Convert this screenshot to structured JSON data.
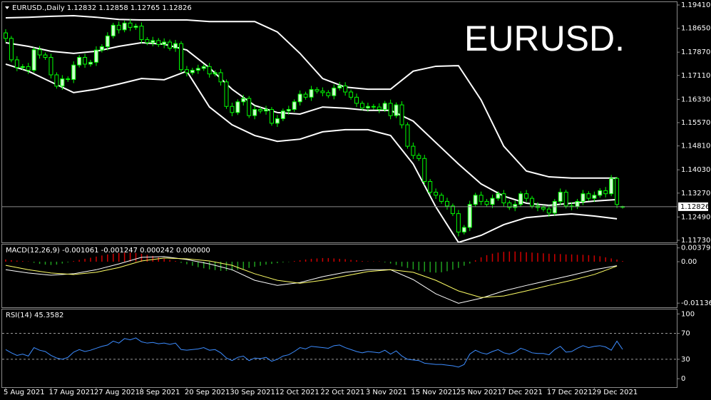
{
  "chart_data": [
    {
      "type": "candlestick",
      "title": "EURUSD.,Daily  1.12832 1.12858 1.12765 1.12826",
      "watermark": "EURUSD.",
      "categories": [
        "5 Aug 2021",
        null,
        null,
        null,
        null,
        null,
        null,
        null,
        "17 Aug 2021",
        null,
        null,
        null,
        null,
        null,
        null,
        null,
        "27 Aug 2021",
        null,
        null,
        null,
        null,
        null,
        null,
        null,
        "8 Sep 2021",
        null,
        null,
        null,
        null,
        null,
        null,
        null,
        "20 Sep 2021",
        null,
        null,
        null,
        null,
        null,
        null,
        null,
        "30 Sep 2021",
        null,
        null,
        null,
        null,
        null,
        null,
        null,
        "12 Oct 2021",
        null,
        null,
        null,
        null,
        null,
        null,
        null,
        "22 Oct 2021",
        null,
        null,
        null,
        null,
        null,
        null,
        null,
        "3 Nov 2021",
        null,
        null,
        null,
        null,
        null,
        null,
        null,
        "15 Nov 2021",
        null,
        null,
        null,
        null,
        null,
        null,
        null,
        "25 Nov 2021",
        null,
        null,
        null,
        null,
        null,
        null,
        null,
        "7 Dec 2021",
        null,
        null,
        null,
        null,
        null,
        null,
        null,
        "17 Dec 2021",
        null,
        null,
        null,
        null,
        null,
        null,
        null,
        "29 Dec 2021",
        null,
        null,
        null,
        null,
        null
      ],
      "open": [
        1.185,
        1.1832,
        1.1762,
        1.1737,
        1.174,
        1.1728,
        1.1795,
        1.1778,
        1.177,
        1.1713,
        1.1676,
        1.17,
        1.1698,
        1.1745,
        1.177,
        1.1748,
        1.1754,
        1.1794,
        1.1805,
        1.184,
        1.1875,
        1.186,
        1.1882,
        1.1868,
        1.1872,
        1.1828,
        1.1818,
        1.1825,
        1.1812,
        1.182,
        1.18,
        1.1815,
        1.173,
        1.172,
        1.1728,
        1.1734,
        1.174,
        1.1716,
        1.172,
        1.169,
        1.161,
        1.159,
        1.1625,
        1.1636,
        1.158,
        1.16,
        1.1595,
        1.16,
        1.1555,
        1.157,
        1.1595,
        1.16,
        1.1625,
        1.165,
        1.164,
        1.1665,
        1.166,
        1.1655,
        1.1645,
        1.167,
        1.1677,
        1.1657,
        1.164,
        1.162,
        1.1605,
        1.161,
        1.1608,
        1.16,
        1.162,
        1.158,
        1.1615,
        1.155,
        1.148,
        1.145,
        1.144,
        1.1365,
        1.133,
        1.132,
        1.13,
        1.1285,
        1.126,
        1.12,
        1.1215,
        1.129,
        1.132,
        1.13,
        1.129,
        1.131,
        1.1325,
        1.1295,
        1.128,
        1.129,
        1.1325,
        1.131,
        1.1285,
        1.128,
        1.1275,
        1.1262,
        1.13,
        1.133,
        1.1285,
        1.1283,
        1.13,
        1.1325,
        1.131,
        1.132,
        1.1335,
        1.1325,
        1.1375,
        1.12832
      ],
      "high": [
        1.1862,
        1.184,
        1.1774,
        1.1748,
        1.1752,
        1.1803,
        1.1807,
        1.1786,
        1.1782,
        1.1721,
        1.1712,
        1.1708,
        1.1757,
        1.1778,
        1.1782,
        1.1762,
        1.1806,
        1.1813,
        1.1852,
        1.1883,
        1.1887,
        1.189,
        1.1894,
        1.188,
        1.1884,
        1.1836,
        1.1837,
        1.1833,
        1.1832,
        1.1828,
        1.1827,
        1.1823,
        1.1742,
        1.1736,
        1.1746,
        1.1748,
        1.1752,
        1.1728,
        1.1732,
        1.1698,
        1.1622,
        1.1633,
        1.1648,
        1.1644,
        1.1612,
        1.1608,
        1.1612,
        1.1608,
        1.1582,
        1.1603,
        1.1612,
        1.1633,
        1.1662,
        1.1658,
        1.1677,
        1.1673,
        1.1672,
        1.1663,
        1.1682,
        1.169,
        1.1689,
        1.1665,
        1.1652,
        1.1628,
        1.1622,
        1.1618,
        1.162,
        1.1628,
        1.1632,
        1.1623,
        1.1627,
        1.1558,
        1.1492,
        1.1458,
        1.1452,
        1.1373,
        1.1342,
        1.1328,
        1.1312,
        1.1293,
        1.1272,
        1.1223,
        1.1302,
        1.1328,
        1.1332,
        1.1308,
        1.1322,
        1.1333,
        1.1337,
        1.1303,
        1.1302,
        1.1333,
        1.1337,
        1.1318,
        1.1297,
        1.1288,
        1.1287,
        1.1308,
        1.1342,
        1.1338,
        1.1297,
        1.1308,
        1.1337,
        1.1333,
        1.1332,
        1.1343,
        1.1347,
        1.1386,
        1.138,
        1.12858
      ],
      "low": [
        1.182,
        1.1754,
        1.1725,
        1.1729,
        1.1716,
        1.172,
        1.1766,
        1.1762,
        1.1701,
        1.1668,
        1.1664,
        1.169,
        1.1686,
        1.1737,
        1.1736,
        1.174,
        1.1742,
        1.1786,
        1.1793,
        1.1832,
        1.1848,
        1.1852,
        1.1856,
        1.186,
        1.1816,
        1.181,
        1.1806,
        1.1804,
        1.18,
        1.1792,
        1.1788,
        1.1722,
        1.1708,
        1.1712,
        1.1716,
        1.1726,
        1.1704,
        1.1708,
        1.1678,
        1.1602,
        1.1578,
        1.1582,
        1.1613,
        1.1572,
        1.1568,
        1.1587,
        1.1583,
        1.1547,
        1.1543,
        1.1562,
        1.1583,
        1.1592,
        1.1613,
        1.1632,
        1.1628,
        1.1652,
        1.1643,
        1.1637,
        1.1633,
        1.1662,
        1.1645,
        1.1632,
        1.1608,
        1.1597,
        1.1593,
        1.16,
        1.1588,
        1.1592,
        1.1568,
        1.1572,
        1.1538,
        1.1472,
        1.1438,
        1.1432,
        1.1353,
        1.1322,
        1.1308,
        1.1292,
        1.1273,
        1.1252,
        1.1186,
        1.1192,
        1.1203,
        1.1282,
        1.1288,
        1.1282,
        1.1278,
        1.1302,
        1.1283,
        1.1272,
        1.1268,
        1.1282,
        1.1298,
        1.1277,
        1.1268,
        1.1267,
        1.125,
        1.1254,
        1.1288,
        1.1277,
        1.1271,
        1.1275,
        1.1288,
        1.1302,
        1.1298,
        1.1312,
        1.1313,
        1.1317,
        1.1278,
        1.12765
      ],
      "close": [
        1.1832,
        1.1762,
        1.1737,
        1.174,
        1.1728,
        1.1795,
        1.1778,
        1.177,
        1.1713,
        1.1676,
        1.17,
        1.1698,
        1.1745,
        1.177,
        1.1748,
        1.1754,
        1.1794,
        1.1805,
        1.184,
        1.1875,
        1.186,
        1.1882,
        1.1868,
        1.1872,
        1.1828,
        1.1818,
        1.1825,
        1.1812,
        1.182,
        1.18,
        1.1815,
        1.173,
        1.172,
        1.1728,
        1.1734,
        1.174,
        1.1716,
        1.172,
        1.169,
        1.161,
        1.159,
        1.1625,
        1.1636,
        1.158,
        1.16,
        1.1595,
        1.16,
        1.1555,
        1.157,
        1.1595,
        1.16,
        1.1625,
        1.165,
        1.164,
        1.1665,
        1.166,
        1.1655,
        1.1645,
        1.167,
        1.1677,
        1.1657,
        1.164,
        1.162,
        1.1605,
        1.161,
        1.1608,
        1.16,
        1.162,
        1.158,
        1.1615,
        1.155,
        1.148,
        1.145,
        1.144,
        1.1365,
        1.133,
        1.132,
        1.13,
        1.1285,
        1.126,
        1.12,
        1.1215,
        1.129,
        1.132,
        1.13,
        1.129,
        1.131,
        1.1325,
        1.1295,
        1.128,
        1.129,
        1.1325,
        1.131,
        1.1285,
        1.128,
        1.1275,
        1.1262,
        1.13,
        1.133,
        1.1285,
        1.1283,
        1.13,
        1.1325,
        1.131,
        1.132,
        1.1335,
        1.1325,
        1.1375,
        1.129,
        1.12826
      ],
      "bull_color": "#ccffcc",
      "bear_color": "#000000",
      "wick_color": "#00ff00",
      "bands": {
        "color": "#ffffff",
        "x": [
          0,
          4,
          8,
          12,
          16,
          20,
          24,
          28,
          32,
          36,
          40,
          44,
          48,
          52,
          56,
          60,
          64,
          68,
          72,
          76,
          80,
          84,
          88,
          92,
          96,
          100,
          104,
          108
        ],
        "upper": [
          1.1899,
          1.1901,
          1.1904,
          1.1906,
          1.1901,
          1.1894,
          1.1892,
          1.1892,
          1.1892,
          1.1887,
          1.1887,
          1.1887,
          1.1853,
          1.1783,
          1.1701,
          1.1673,
          1.1666,
          1.1666,
          1.1725,
          1.1741,
          1.1743,
          1.1631,
          1.148,
          1.1399,
          1.138,
          1.1376,
          1.1376,
          1.1376
        ],
        "middle": [
          1.1818,
          1.1806,
          1.179,
          1.1783,
          1.179,
          1.1806,
          1.1818,
          1.1813,
          1.1794,
          1.1736,
          1.1666,
          1.1613,
          1.159,
          1.1585,
          1.1608,
          1.1604,
          1.1597,
          1.1597,
          1.1562,
          1.1492,
          1.1422,
          1.1357,
          1.1317,
          1.1294,
          1.1287,
          1.1294,
          1.1301,
          1.1306
        ],
        "lower": [
          1.1748,
          1.1725,
          1.169,
          1.1655,
          1.1666,
          1.1683,
          1.1701,
          1.1697,
          1.1725,
          1.1608,
          1.155,
          1.1515,
          1.1496,
          1.1503,
          1.1527,
          1.1534,
          1.1534,
          1.1515,
          1.1422,
          1.1282,
          1.1166,
          1.1189,
          1.1224,
          1.1247,
          1.1254,
          1.1259,
          1.1252,
          1.1243
        ]
      },
      "last_price": 1.12826,
      "ylim": [
        1.1173,
        1.1941
      ],
      "yticks": [
        {
          "value": 1.1941,
          "label": "1.19410"
        },
        {
          "value": 1.1865,
          "label": "1.18650"
        },
        {
          "value": 1.1787,
          "label": "1.17870"
        },
        {
          "value": 1.1711,
          "label": "1.17110"
        },
        {
          "value": 1.1633,
          "label": "1.16330"
        },
        {
          "value": 1.1557,
          "label": "1.15570"
        },
        {
          "value": 1.1481,
          "label": "1.14810"
        },
        {
          "value": 1.1403,
          "label": "1.14030"
        },
        {
          "value": 1.1327,
          "label": "1.13270"
        },
        {
          "value": 1.1249,
          "label": "1.12490"
        },
        {
          "value": 1.1173,
          "label": "1.11730"
        }
      ]
    },
    {
      "type": "macd",
      "title": "MACD(12,26,9) -0.001061 -0.001247 0.000242 0.000000",
      "histogram": [
        0.0006,
        0.0004,
        0.0003,
        0.0002,
        0.0001,
        -0.0003,
        -0.0006,
        -0.0008,
        -0.0009,
        -0.0008,
        -0.0005,
        -0.0002,
        0.0002,
        0.0005,
        0.0008,
        0.0011,
        0.0014,
        0.0017,
        0.002,
        0.0022,
        0.0024,
        0.0025,
        0.0025,
        0.0024,
        0.0022,
        0.0019,
        0.0016,
        0.0012,
        0.0008,
        0.0005,
        0.0002,
        -0.0003,
        -0.0007,
        -0.0011,
        -0.0015,
        -0.0018,
        -0.0021,
        -0.0023,
        -0.0025,
        -0.0025,
        -0.0024,
        -0.0022,
        -0.002,
        -0.0017,
        -0.0014,
        -0.0011,
        -0.0008,
        -0.0006,
        -0.0004,
        -0.0002,
        -0.0001,
        0.0002,
        0.0004,
        0.0006,
        0.0008,
        0.0009,
        0.001,
        0.001,
        0.0009,
        0.0008,
        0.0007,
        0.0005,
        0.0004,
        0.0002,
        0.0001,
        0.0001,
        0.0001,
        -0.0002,
        -0.0005,
        -0.0009,
        -0.0013,
        -0.0017,
        -0.0021,
        -0.0024,
        -0.0027,
        -0.0029,
        -0.003,
        -0.0029,
        -0.0026,
        -0.0022,
        -0.0017,
        -0.0011,
        -0.0005,
        0.0004,
        0.0012,
        0.0018,
        0.0022,
        0.0025,
        0.0027,
        0.0028,
        0.0028,
        0.0027,
        0.0026,
        0.0025,
        0.0024,
        0.0023,
        0.0022,
        0.0021,
        0.0021,
        0.002,
        0.002,
        0.0019,
        0.0019,
        0.0018,
        0.0017,
        0.0015,
        0.0012,
        0.0009,
        0.0006,
        0.0002
      ],
      "up_color": "#d00000",
      "down_color": "#1fa01f",
      "x": [
        0,
        4,
        8,
        12,
        16,
        20,
        24,
        28,
        32,
        36,
        40,
        44,
        48,
        52,
        56,
        60,
        64,
        68,
        72,
        76,
        80,
        84,
        88,
        92,
        96,
        100,
        104,
        108
      ],
      "macd": [
        -0.0022,
        -0.0031,
        -0.0037,
        -0.0033,
        -0.0022,
        -0.0006,
        0.0012,
        0.0014,
        0.0006,
        -0.0006,
        -0.0022,
        -0.0051,
        -0.0065,
        -0.0057,
        -0.0041,
        -0.0029,
        -0.0022,
        -0.0022,
        -0.0049,
        -0.0088,
        -0.0114,
        -0.01,
        -0.008,
        -0.0065,
        -0.0051,
        -0.0037,
        -0.0022,
        -0.0011
      ],
      "signal": [
        -0.001,
        -0.0022,
        -0.0031,
        -0.0035,
        -0.0029,
        -0.0016,
        0.0002,
        0.001,
        0.0008,
        0.0002,
        -0.001,
        -0.0033,
        -0.0051,
        -0.0059,
        -0.0051,
        -0.0039,
        -0.0027,
        -0.0022,
        -0.0029,
        -0.0051,
        -0.008,
        -0.0098,
        -0.0094,
        -0.008,
        -0.0065,
        -0.0051,
        -0.0035,
        -0.0012
      ],
      "macd_color": "#ffffff",
      "signal_color": "#ffff66",
      "ylim": [
        -0.0125,
        0.0047
      ],
      "yticks": [
        0.00379,
        {
          "value": 0,
          "label": "0.00"
        },
        -0.01136
      ]
    },
    {
      "type": "line",
      "title": "RSI(14) 45.3582",
      "values": [
        45,
        40,
        36,
        38,
        35,
        48,
        44,
        42,
        36,
        32,
        30,
        33,
        41,
        45,
        42,
        44,
        47,
        50,
        52,
        58,
        55,
        62,
        60,
        63,
        57,
        55,
        56,
        54,
        55,
        53,
        55,
        45,
        44,
        45,
        46,
        48,
        44,
        45,
        40,
        32,
        28,
        33,
        35,
        28,
        32,
        31,
        33,
        27,
        30,
        35,
        37,
        42,
        48,
        46,
        50,
        49,
        48,
        47,
        51,
        52,
        48,
        45,
        42,
        40,
        42,
        41,
        40,
        44,
        38,
        43,
        35,
        30,
        29,
        28,
        24,
        23,
        22,
        22,
        21,
        20,
        18,
        22,
        38,
        44,
        40,
        38,
        42,
        45,
        40,
        38,
        41,
        47,
        44,
        40,
        39,
        39,
        37,
        45,
        50,
        41,
        42,
        47,
        51,
        48,
        50,
        51,
        49,
        44,
        58,
        45.36
      ],
      "color": "#3c8cff",
      "levels": [
        30,
        70
      ],
      "ylim": [
        -13,
        108
      ],
      "yticks": [
        100,
        70,
        30,
        0
      ]
    }
  ]
}
